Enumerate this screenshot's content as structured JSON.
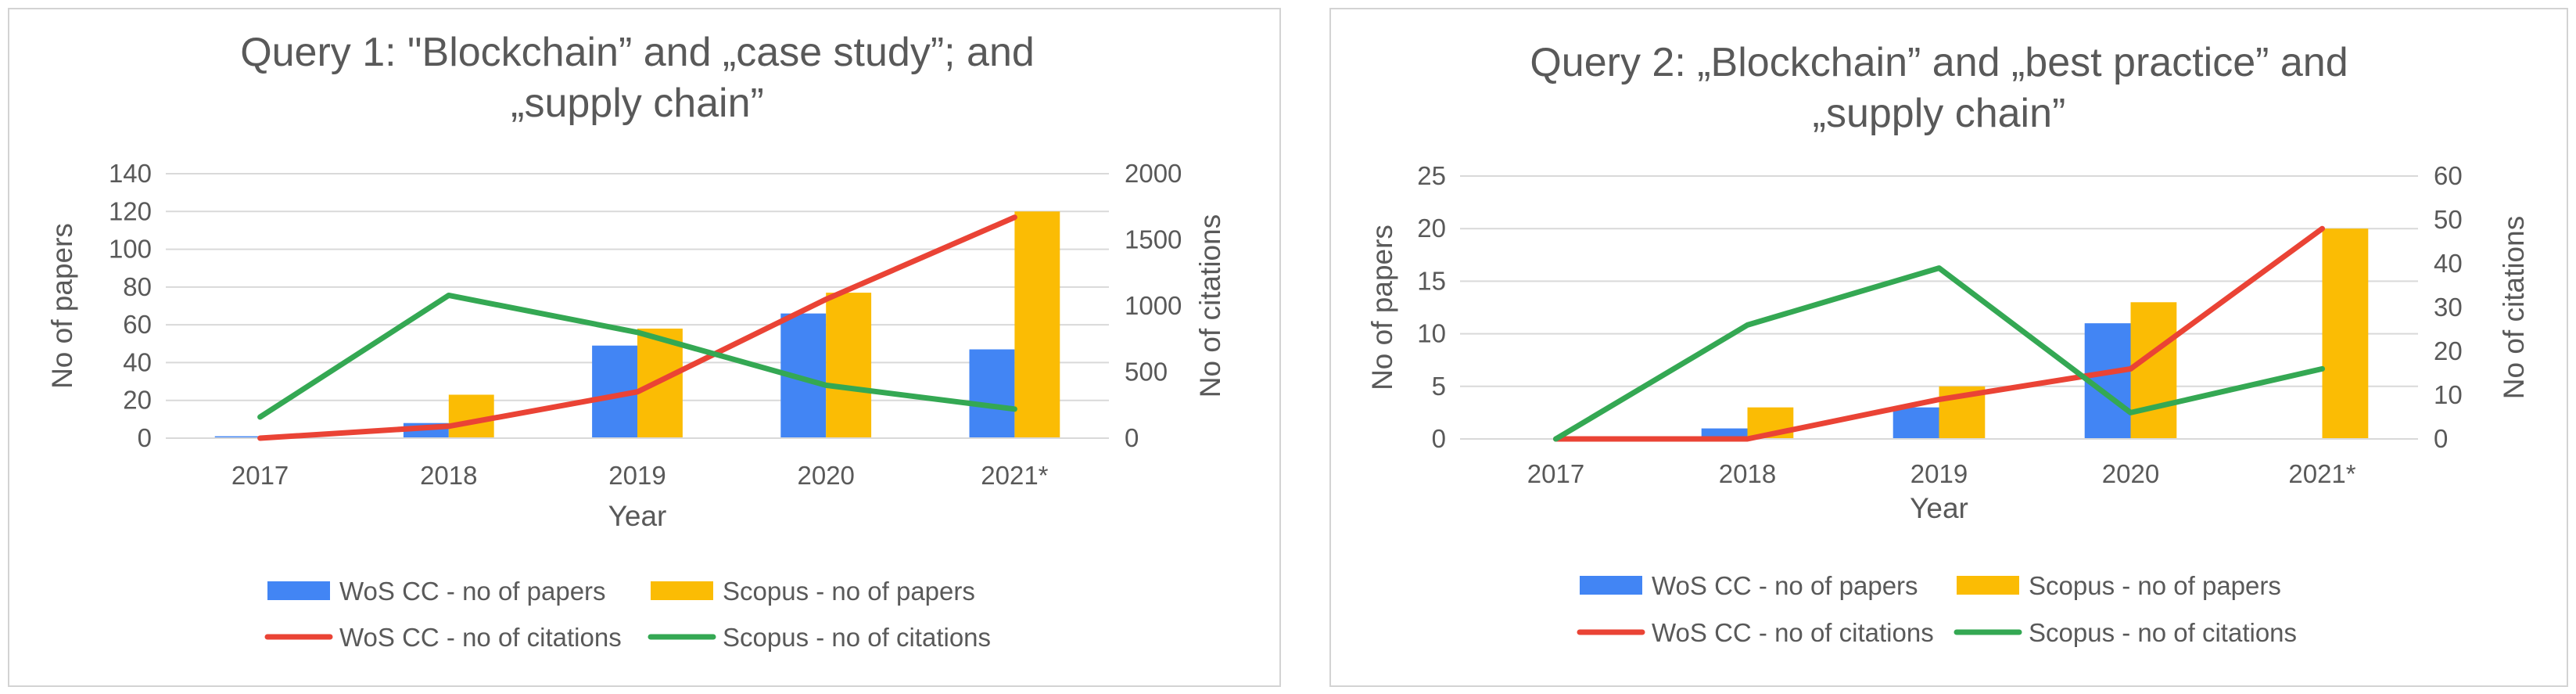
{
  "chart_data": [
    {
      "type": "bar",
      "title_lines": [
        "Query 1: \"Blockchain” and „case study”; and",
        "„supply chain”"
      ],
      "xlabel": "Year",
      "ylabel": "No of papers",
      "y2label": "No of citations",
      "categories": [
        "2017",
        "2018",
        "2019",
        "2020",
        "2021*"
      ],
      "ylim": [
        0,
        140
      ],
      "yticks": [
        0,
        20,
        40,
        60,
        80,
        100,
        120,
        140
      ],
      "y2lim": [
        0,
        2000
      ],
      "y2ticks": [
        0,
        500,
        1000,
        1500,
        2000
      ],
      "gridlines": true,
      "legend_position": "bottom",
      "bar_series": [
        {
          "name": "WoS CC - no of papers",
          "color": "#4285f4",
          "values": [
            1,
            8,
            49,
            66,
            47
          ]
        },
        {
          "name": "Scopus - no of papers",
          "color": "#fbbc04",
          "values": [
            1,
            23,
            58,
            77,
            120
          ]
        }
      ],
      "line_series": [
        {
          "name": "WoS CC - no of citations",
          "color": "#ea4335",
          "axis": "secondary",
          "values": [
            0,
            90,
            350,
            1050,
            1670
          ]
        },
        {
          "name": "Scopus - no of citations",
          "color": "#34a853",
          "axis": "secondary",
          "values": [
            160,
            1080,
            800,
            400,
            220
          ]
        }
      ]
    },
    {
      "type": "bar",
      "title_lines": [
        "Query 2: „Blockchain” and „best practice” and",
        "„supply chain”"
      ],
      "xlabel": "Year",
      "ylabel": "No of papers",
      "y2label": "No of citations",
      "categories": [
        "2017",
        "2018",
        "2019",
        "2020",
        "2021*"
      ],
      "ylim": [
        0,
        25
      ],
      "yticks": [
        0,
        5,
        10,
        15,
        20,
        25
      ],
      "y2lim": [
        0,
        60
      ],
      "y2ticks": [
        0,
        10,
        20,
        30,
        40,
        50,
        60
      ],
      "gridlines": true,
      "legend_position": "bottom",
      "bar_series": [
        {
          "name": "WoS CC - no of papers",
          "color": "#4285f4",
          "values": [
            0,
            1,
            3,
            11,
            0
          ]
        },
        {
          "name": "Scopus - no of papers",
          "color": "#fbbc04",
          "values": [
            0,
            3,
            5,
            13,
            20
          ]
        }
      ],
      "line_series": [
        {
          "name": "WoS CC - no of citations",
          "color": "#ea4335",
          "axis": "secondary",
          "values": [
            0,
            0,
            9,
            16,
            48
          ]
        },
        {
          "name": "Scopus - no of citations",
          "color": "#34a853",
          "axis": "secondary",
          "values": [
            0,
            26,
            39,
            6,
            16
          ]
        }
      ]
    }
  ]
}
